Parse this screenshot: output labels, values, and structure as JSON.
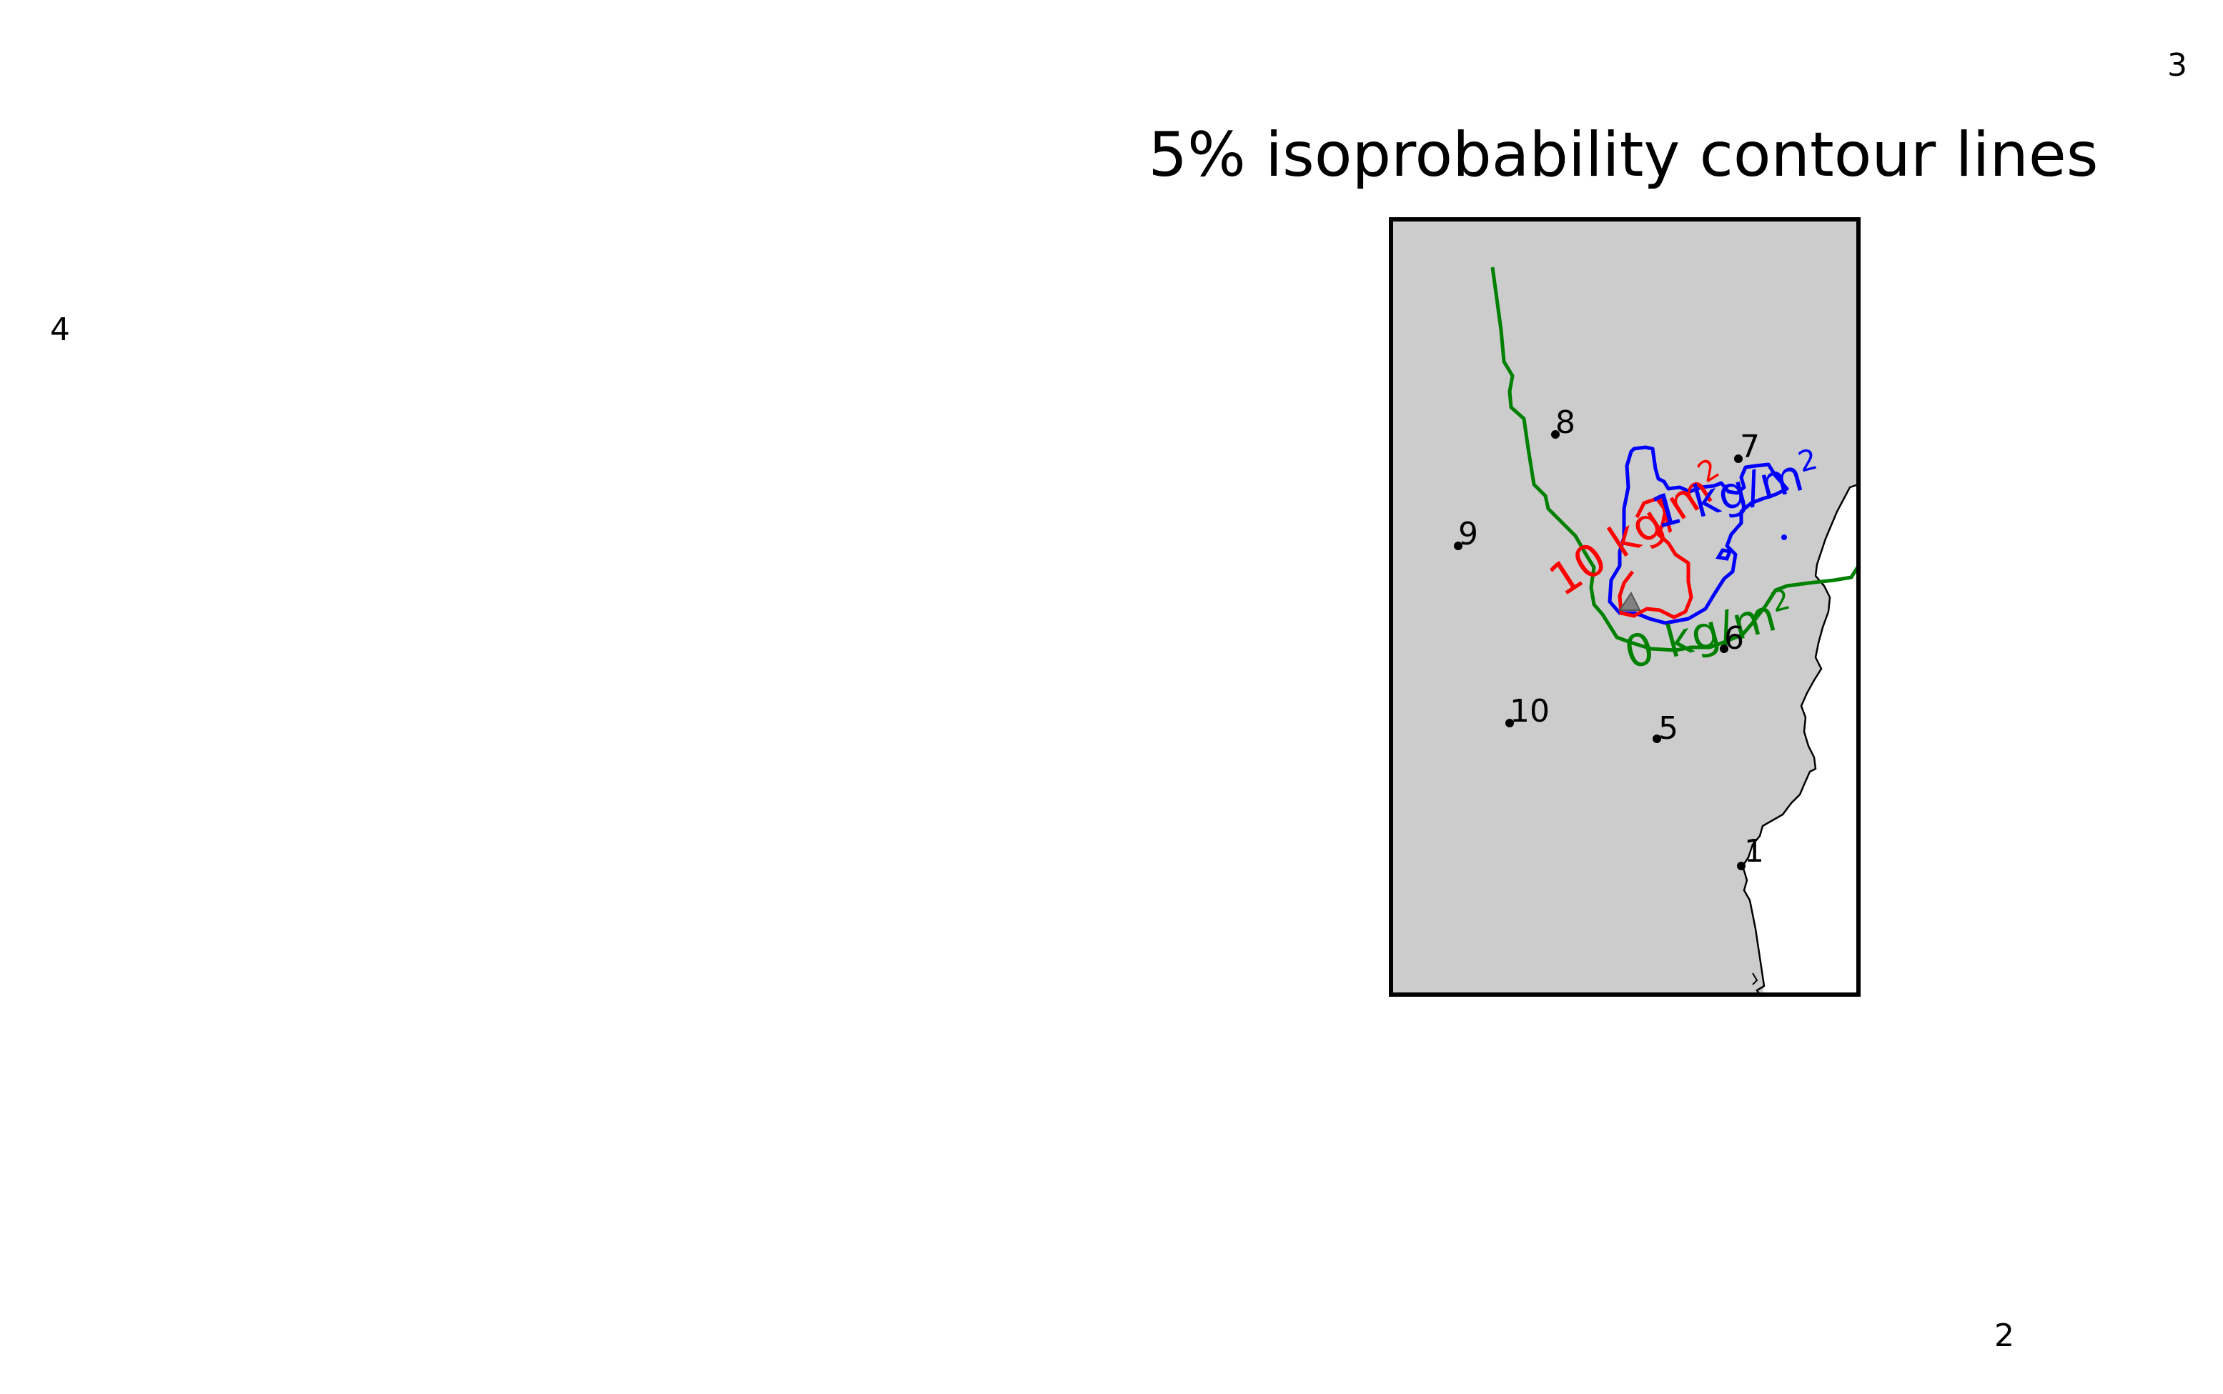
{
  "title": "5% isoprobability contour lines",
  "colors": {
    "land": "#cccccc",
    "sea": "#ffffff",
    "frame": "#000000",
    "contour_0": "#008000",
    "contour_1": "#0000ff",
    "contour_10": "#ff0000",
    "vent": "#808080"
  },
  "contours": [
    {
      "name": "contour-0",
      "label": "0 kg/m",
      "color": "#008000"
    },
    {
      "name": "contour-1",
      "label": "1 kg/m",
      "color": "#0000ff"
    },
    {
      "name": "contour-10",
      "label": "10 kg/m",
      "color": "#ff0000"
    }
  ],
  "unit_superscript": "2",
  "stations": [
    "1",
    "2",
    "3",
    "4",
    "5",
    "6",
    "7",
    "8",
    "9",
    "10"
  ],
  "vent_icon": "triangle-icon"
}
